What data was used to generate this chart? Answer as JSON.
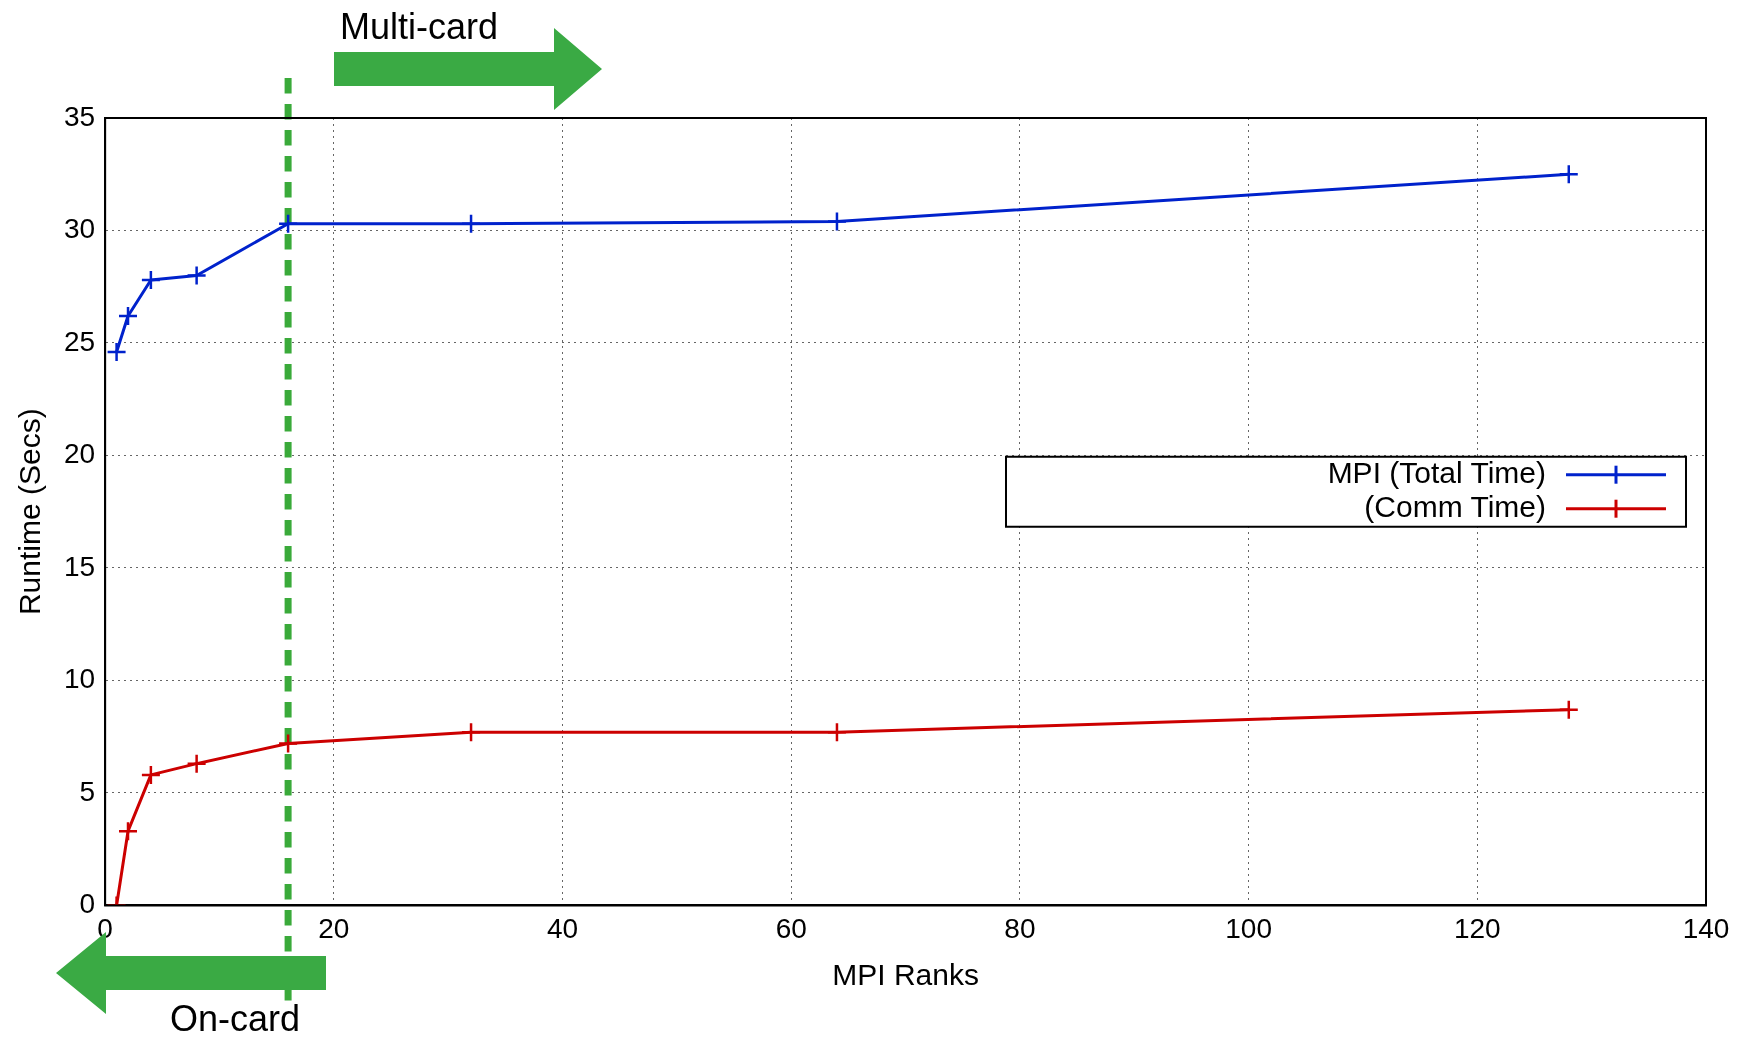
{
  "chart_data": {
    "type": "line",
    "xlabel": "MPI Ranks",
    "ylabel": "Runtime (Secs)",
    "x": [
      1,
      2,
      4,
      8,
      16,
      32,
      64,
      128
    ],
    "series": [
      {
        "name": "MPI (Total Time)",
        "color": "#0022cc",
        "values": [
          24.6,
          26.2,
          27.8,
          28.0,
          30.3,
          30.3,
          30.4,
          32.5
        ]
      },
      {
        "name": "(Comm Time)",
        "color": "#cc0000",
        "values": [
          0,
          3.3,
          5.8,
          6.3,
          7.2,
          7.7,
          7.7,
          8.7
        ]
      }
    ],
    "xlim": [
      0,
      140
    ],
    "xticks": [
      0,
      20,
      40,
      60,
      80,
      100,
      120,
      140
    ],
    "ylim": [
      0,
      35
    ],
    "yticks": [
      0,
      5,
      10,
      15,
      20,
      25,
      30,
      35
    ],
    "grid": true,
    "legend": "right",
    "marker": "cross",
    "line_style": "solid",
    "ref_lines": [
      {
        "axis": "x",
        "value": 16,
        "color": "#3aaa3a",
        "line_style": "dashed"
      }
    ],
    "annotations": [
      "Multi-card",
      "On-card"
    ]
  }
}
